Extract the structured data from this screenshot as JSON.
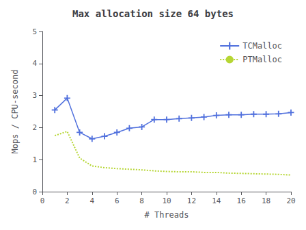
{
  "chart_data": {
    "type": "line",
    "title": "Max allocation size 64 bytes",
    "x_label": "# Threads",
    "y_label": "Mops / CPU-second",
    "x": [
      1,
      2,
      3,
      4,
      5,
      6,
      7,
      8,
      9,
      10,
      11,
      12,
      13,
      14,
      15,
      16,
      17,
      18,
      19,
      20
    ],
    "series": [
      {
        "name": "TCMalloc",
        "line_style": "solid",
        "marker": "plus",
        "values": [
          2.55,
          2.92,
          1.85,
          1.65,
          1.73,
          1.85,
          1.98,
          2.02,
          2.25,
          2.25,
          2.28,
          2.3,
          2.33,
          2.38,
          2.4,
          2.4,
          2.42,
          2.42,
          2.43,
          2.47
        ]
      },
      {
        "name": "PTMalloc",
        "line_style": "dotted",
        "marker": "none",
        "values": [
          1.75,
          1.88,
          1.05,
          0.8,
          0.75,
          0.72,
          0.7,
          0.68,
          0.65,
          0.63,
          0.62,
          0.62,
          0.6,
          0.6,
          0.58,
          0.57,
          0.56,
          0.55,
          0.54,
          0.52
        ]
      }
    ],
    "xlim": [
      0,
      20
    ],
    "xticks": [
      0,
      2,
      4,
      6,
      8,
      10,
      12,
      14,
      16,
      18,
      20
    ],
    "ylim": [
      0,
      5
    ],
    "yticks": [
      0,
      1,
      2,
      3,
      4,
      5
    ],
    "grid": false,
    "legend": "upper right"
  }
}
